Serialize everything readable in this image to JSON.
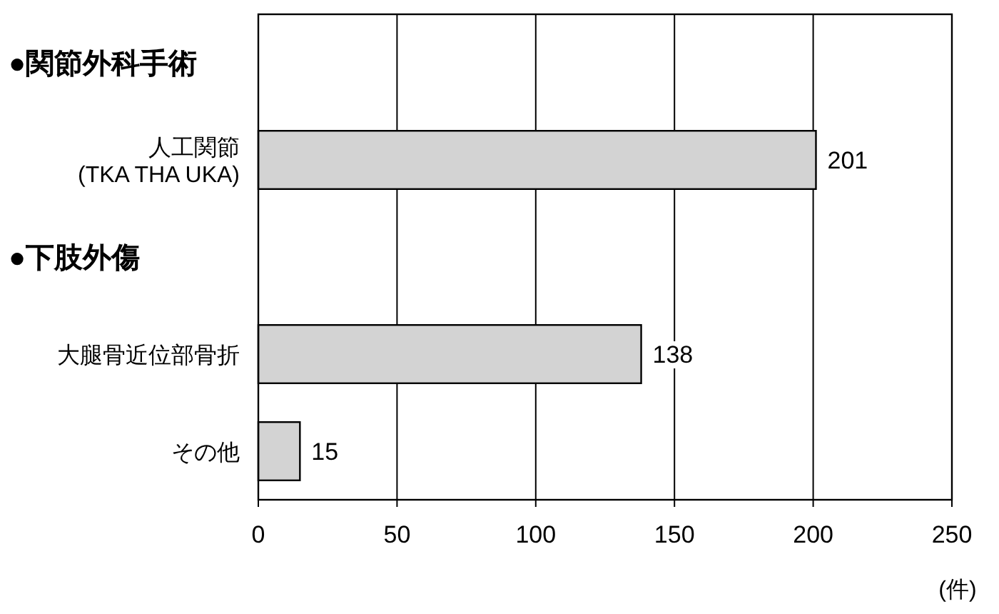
{
  "chart_data": {
    "type": "bar",
    "orientation": "horizontal",
    "categories": [
      null,
      "人工関節\n(TKA THA UKA)",
      null,
      "大腿骨近位部骨折",
      "その他"
    ],
    "annotations": [
      "●関節外科手術",
      "●下肢外傷"
    ],
    "values": [
      null,
      201,
      null,
      138,
      15
    ],
    "color": "#d3d3d3",
    "xlim": [
      0,
      250
    ],
    "xticks": [
      0,
      50,
      100,
      150,
      200,
      250
    ],
    "xlabel": "(件)",
    "grid": "x",
    "data_labels": true
  }
}
